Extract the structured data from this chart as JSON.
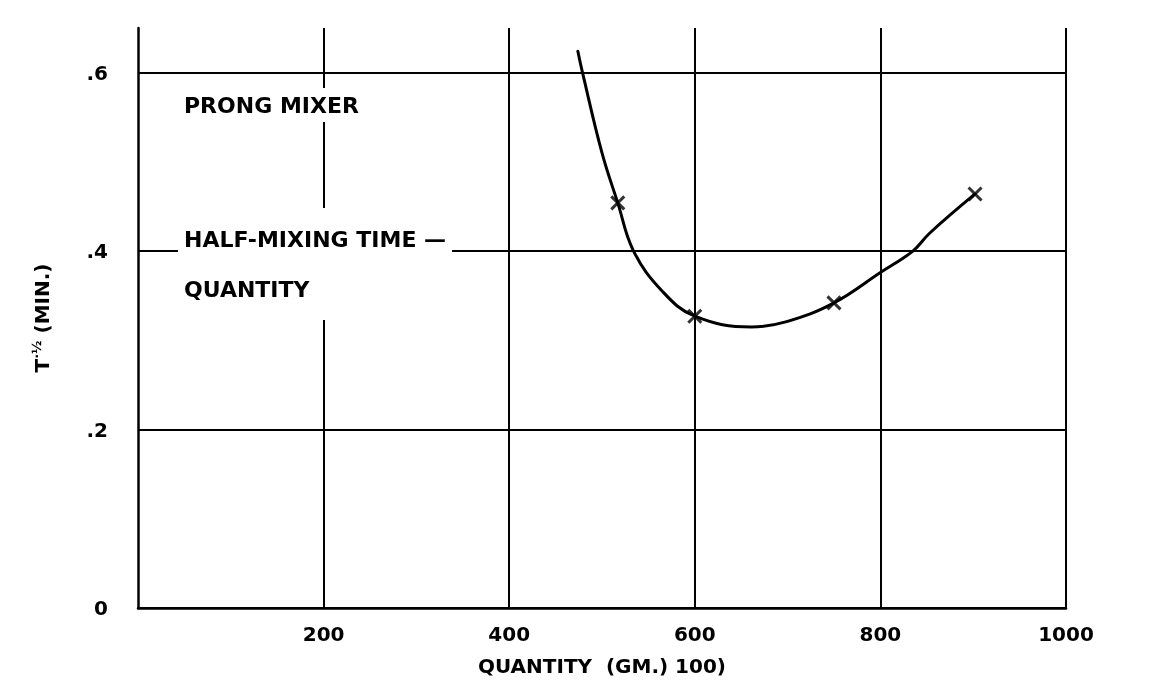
{
  "chart_data": {
    "type": "scatter",
    "title": "PRONG MIXER",
    "subtitle": "HALF-MIXING TIME —\nQUANTITY",
    "xlabel": "QUANTITY  (GM.) 100)",
    "ylabel": "T$^{·½}$ (MIN.)",
    "xlim": [
      0,
      1000
    ],
    "xticks": [
      200,
      400,
      600,
      800,
      1000
    ],
    "ylim": [
      0,
      0.65
    ],
    "yticks": [
      {
        "value": 0,
        "label": "0"
      },
      {
        "value": 0.2,
        "label": ".2"
      },
      {
        "value": 0.4,
        "label": ".4"
      },
      {
        "value": 0.6,
        "label": ".6"
      }
    ],
    "grid": true,
    "marker": "cross",
    "series": [
      {
        "type": "line",
        "color": "#000000",
        "marker": "none",
        "x": [
          474,
          479,
          500,
          517,
          534,
          565,
          600,
          661,
          699,
          750,
          800,
          835,
          853,
          902
        ],
        "values": [
          0.624,
          0.6,
          0.51,
          0.454,
          0.4,
          0.355,
          0.327,
          0.315,
          0.321,
          0.342,
          0.376,
          0.4,
          0.42,
          0.464
        ]
      },
      {
        "color": "#000000",
        "x": [
          517,
          600,
          750,
          902
        ],
        "values": [
          0.454,
          0.327,
          0.342,
          0.464
        ]
      }
    ]
  }
}
